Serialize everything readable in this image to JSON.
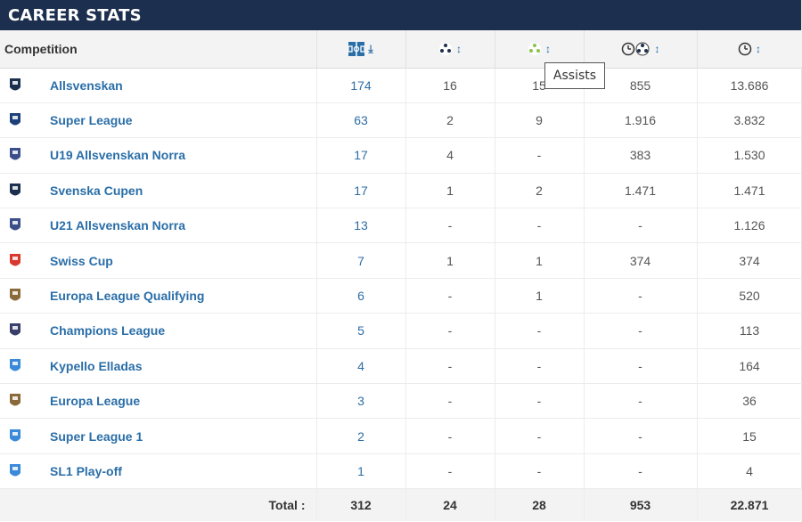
{
  "header": {
    "title": "CAREER STATS"
  },
  "table": {
    "competition_label": "Competition",
    "columns": [
      {
        "icon": "appearances-icon",
        "sort": "sort-desc-icon"
      },
      {
        "icon": "goals-icon",
        "sort": "sort-icon"
      },
      {
        "icon": "assists-icon",
        "sort": "sort-icon"
      },
      {
        "icon": "minutes-per-goal-icon",
        "sort": "sort-icon"
      },
      {
        "icon": "minutes-played-icon",
        "sort": "sort-icon"
      }
    ],
    "rows": [
      {
        "name": "Allsvenskan",
        "logo": "allsvenskan-logo-icon",
        "apps": "174",
        "goals": "16",
        "assists": "15",
        "mpg": "855",
        "mins": "13.686"
      },
      {
        "name": "Super League",
        "logo": "super-league-logo-icon",
        "apps": "63",
        "goals": "2",
        "assists": "9",
        "mpg": "1.916",
        "mins": "3.832"
      },
      {
        "name": "U19 Allsvenskan Norra",
        "logo": "u19-allsvenskan-norra-logo-icon",
        "apps": "17",
        "goals": "4",
        "assists": "-",
        "mpg": "383",
        "mins": "1.530"
      },
      {
        "name": "Svenska Cupen",
        "logo": "svenska-cupen-logo-icon",
        "apps": "17",
        "goals": "1",
        "assists": "2",
        "mpg": "1.471",
        "mins": "1.471"
      },
      {
        "name": "U21 Allsvenskan Norra",
        "logo": "u21-allsvenskan-norra-logo-icon",
        "apps": "13",
        "goals": "-",
        "assists": "-",
        "mpg": "-",
        "mins": "1.126"
      },
      {
        "name": "Swiss Cup",
        "logo": "swiss-cup-logo-icon",
        "apps": "7",
        "goals": "1",
        "assists": "1",
        "mpg": "374",
        "mins": "374"
      },
      {
        "name": "Europa League Qualifying",
        "logo": "europa-league-qualifying-logo-icon",
        "apps": "6",
        "goals": "-",
        "assists": "1",
        "mpg": "-",
        "mins": "520"
      },
      {
        "name": "Champions League",
        "logo": "champions-league-logo-icon",
        "apps": "5",
        "goals": "-",
        "assists": "-",
        "mpg": "-",
        "mins": "113"
      },
      {
        "name": "Kypello Elladas",
        "logo": "kypello-elladas-logo-icon",
        "apps": "4",
        "goals": "-",
        "assists": "-",
        "mpg": "-",
        "mins": "164"
      },
      {
        "name": "Europa League",
        "logo": "europa-league-logo-icon",
        "apps": "3",
        "goals": "-",
        "assists": "-",
        "mpg": "-",
        "mins": "36"
      },
      {
        "name": "Super League 1",
        "logo": "super-league-1-logo-icon",
        "apps": "2",
        "goals": "-",
        "assists": "-",
        "mpg": "-",
        "mins": "15"
      },
      {
        "name": "SL1 Play-off",
        "logo": "sl1-play-off-logo-icon",
        "apps": "1",
        "goals": "-",
        "assists": "-",
        "mpg": "-",
        "mins": "4"
      }
    ],
    "total": {
      "label": "Total :",
      "apps": "312",
      "goals": "24",
      "assists": "28",
      "mpg": "953",
      "mins": "22.871"
    }
  },
  "tooltip": {
    "text": "Assists"
  },
  "colors": {
    "header_bg": "#1d2f4f",
    "link": "#2a6ea8",
    "assist_green": "#8bc34a"
  }
}
